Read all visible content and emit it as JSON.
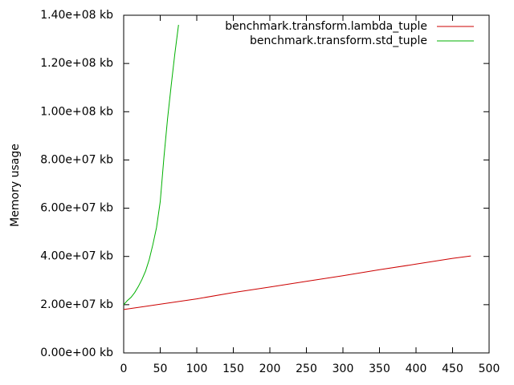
{
  "chart_data": {
    "type": "line",
    "title": "",
    "xlabel": "",
    "ylabel": "Memory usage",
    "xlim": [
      0,
      500
    ],
    "ylim": [
      0,
      140000000
    ],
    "x_ticks": [
      0,
      50,
      100,
      150,
      200,
      250,
      300,
      350,
      400,
      450,
      500
    ],
    "y_ticks": [
      0,
      20000000,
      40000000,
      60000000,
      80000000,
      100000000,
      120000000,
      140000000
    ],
    "x_tick_labels": [
      "0",
      "50",
      "100",
      "150",
      "200",
      "250",
      "300",
      "350",
      "400",
      "450",
      "500"
    ],
    "y_tick_labels": [
      "0.00e+00 kb",
      "2.00e+07 kb",
      "4.00e+07 kb",
      "6.00e+07 kb",
      "8.00e+07 kb",
      "1.00e+08 kb",
      "1.20e+08 kb",
      "1.40e+08 kb"
    ],
    "grid": false,
    "legend_position": "top-right",
    "series": [
      {
        "name": "benchmark.transform.lambda_tuple",
        "color": "#cc0000",
        "points": [
          [
            0,
            18000000
          ],
          [
            50,
            20200000
          ],
          [
            100,
            22400000
          ],
          [
            150,
            25000000
          ],
          [
            200,
            27300000
          ],
          [
            250,
            29700000
          ],
          [
            300,
            32000000
          ],
          [
            350,
            34500000
          ],
          [
            400,
            36800000
          ],
          [
            450,
            39200000
          ],
          [
            475,
            40200000
          ]
        ]
      },
      {
        "name": "benchmark.transform.std_tuple",
        "color": "#00b000",
        "points": [
          [
            0,
            20000000
          ],
          [
            5,
            21700000
          ],
          [
            10,
            23000000
          ],
          [
            15,
            25000000
          ],
          [
            20,
            27500000
          ],
          [
            25,
            30500000
          ],
          [
            30,
            34000000
          ],
          [
            35,
            38700000
          ],
          [
            40,
            45000000
          ],
          [
            45,
            52000000
          ],
          [
            50,
            62700000
          ],
          [
            55,
            81000000
          ],
          [
            60,
            97000000
          ],
          [
            65,
            111000000
          ],
          [
            70,
            124000000
          ],
          [
            75,
            136000000
          ]
        ]
      }
    ]
  }
}
